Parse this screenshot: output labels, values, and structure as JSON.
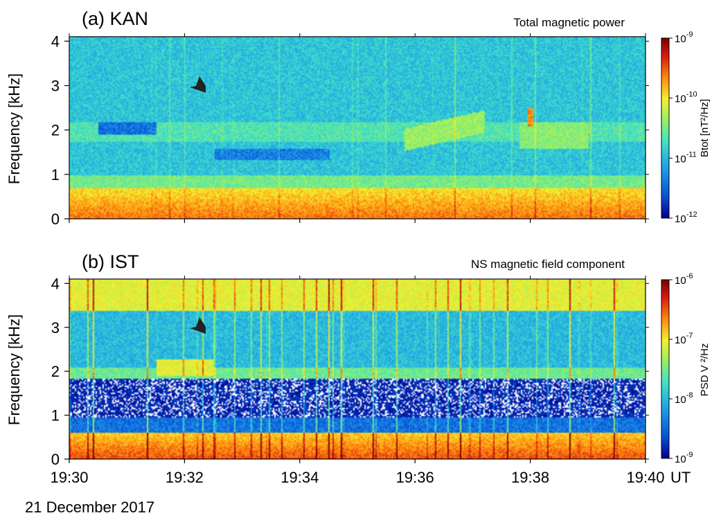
{
  "date_label": "21 December 2017",
  "chart_data": [
    {
      "type": "heatmap",
      "panel_label": "(a) KAN",
      "title": "Total magnetic power",
      "ylabel": "Frequency [kHz]",
      "yticks": [
        "0",
        "1",
        "2",
        "3",
        "4"
      ],
      "ylim": [
        0,
        4.1
      ],
      "x": [
        "19:30",
        "19:32",
        "19:34",
        "19:36",
        "19:38",
        "19:40"
      ],
      "x_unit": "UT",
      "colorbar": {
        "label": "Btot [nT²/Hz]",
        "scale": "log",
        "ticks": [
          {
            "base": "10",
            "exp": "-9"
          },
          {
            "base": "10",
            "exp": "-10"
          },
          {
            "base": "10",
            "exp": "-11"
          },
          {
            "base": "10",
            "exp": "-12"
          }
        ],
        "range": [
          1e-12,
          1e-09
        ],
        "colormap": [
          "#00008b",
          "#0a4fd6",
          "#1fa0e8",
          "#40e0c8",
          "#9af060",
          "#f5f030",
          "#ff8a10",
          "#d81a10",
          "#7a0000"
        ]
      },
      "annotations": [
        {
          "type": "arrowhead",
          "time": "19:32.1",
          "frequency_khz": 2.95
        }
      ]
    },
    {
      "type": "heatmap",
      "panel_label": "(b) IST",
      "title": "NS magnetic field component",
      "ylabel": "Frequency [kHz]",
      "yticks": [
        "0",
        "1",
        "2",
        "3",
        "4"
      ],
      "ylim": [
        0,
        4.1
      ],
      "x": [
        "19:30",
        "19:32",
        "19:34",
        "19:36",
        "19:38",
        "19:40"
      ],
      "x_unit": "UT",
      "colorbar": {
        "label": "PSD V ²/Hz",
        "scale": "log",
        "ticks": [
          {
            "base": "10",
            "exp": "-6"
          },
          {
            "base": "10",
            "exp": "-7"
          },
          {
            "base": "10",
            "exp": "-8"
          },
          {
            "base": "10",
            "exp": "-9"
          }
        ],
        "range": [
          1e-09,
          1e-06
        ],
        "colormap": [
          "#00008b",
          "#0a4fd6",
          "#1fa0e8",
          "#40e0c8",
          "#9af060",
          "#f5f030",
          "#ff8a10",
          "#d81a10",
          "#7a0000"
        ]
      },
      "annotations": [
        {
          "type": "arrowhead",
          "time": "19:32.1",
          "frequency_khz": 2.95
        }
      ]
    }
  ]
}
